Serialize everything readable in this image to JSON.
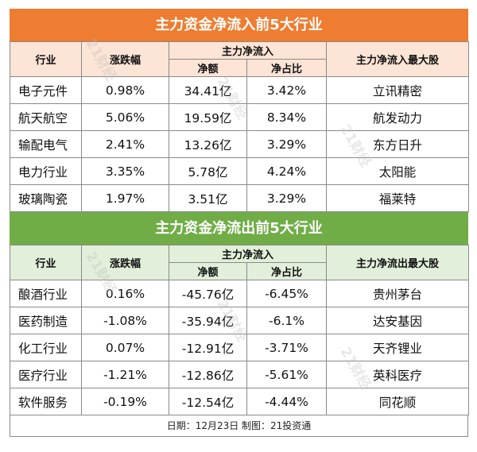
{
  "inflow": {
    "title": "主力资金净流入前5大行业",
    "headers": {
      "industry": "行业",
      "change": "涨跌幅",
      "net_group": "主力净流入",
      "net_amount": "净额",
      "net_ratio": "净占比",
      "top_stock": "主力净流入最大股"
    },
    "rows": [
      {
        "industry": "电子元件",
        "change": "0.98%",
        "amount": "34.41亿",
        "ratio": "3.42%",
        "stock": "立讯精密"
      },
      {
        "industry": "航天航空",
        "change": "5.06%",
        "amount": "19.59亿",
        "ratio": "8.34%",
        "stock": "航发动力"
      },
      {
        "industry": "输配电气",
        "change": "2.41%",
        "amount": "13.26亿",
        "ratio": "3.29%",
        "stock": "东方日升"
      },
      {
        "industry": "电力行业",
        "change": "3.35%",
        "amount": "5.78亿",
        "ratio": "4.24%",
        "stock": "太阳能"
      },
      {
        "industry": "玻璃陶瓷",
        "change": "1.97%",
        "amount": "3.51亿",
        "ratio": "3.29%",
        "stock": "福莱特"
      }
    ]
  },
  "outflow": {
    "title": "主力资金净流出前5大行业",
    "headers": {
      "industry": "行业",
      "change": "涨跌幅",
      "net_group": "主力净流入",
      "net_amount": "净额",
      "net_ratio": "净占比",
      "top_stock": "主力净流出最大股"
    },
    "rows": [
      {
        "industry": "酿酒行业",
        "change": "0.16%",
        "amount": "-45.76亿",
        "ratio": "-6.45%",
        "stock": "贵州茅台"
      },
      {
        "industry": "医药制造",
        "change": "-1.08%",
        "amount": "-35.94亿",
        "ratio": "-6.1%",
        "stock": "达安基因"
      },
      {
        "industry": "化工行业",
        "change": "0.07%",
        "amount": "-12.91亿",
        "ratio": "-3.71%",
        "stock": "天齐锂业"
      },
      {
        "industry": "医疗行业",
        "change": "-1.21%",
        "amount": "-12.86亿",
        "ratio": "-5.61%",
        "stock": "英科医疗"
      },
      {
        "industry": "软件服务",
        "change": "-0.19%",
        "amount": "-12.54亿",
        "ratio": "-4.44%",
        "stock": "同花顺"
      }
    ]
  },
  "footer": "日期：12月23日 制图：21投资通",
  "watermark": "21财经",
  "colors": {
    "inflow_banner": "#ee7d31",
    "inflow_header": "#fce4d6",
    "outflow_banner": "#70ad47",
    "outflow_header": "#e2efda"
  }
}
